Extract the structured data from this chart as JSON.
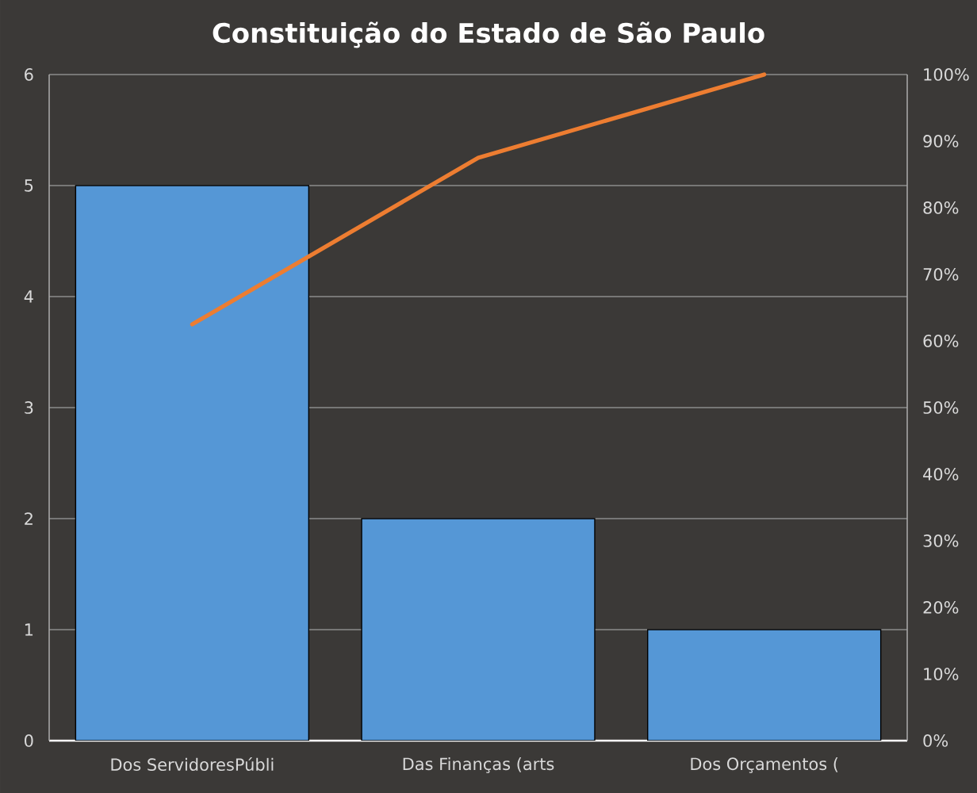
{
  "chart_data": {
    "type": "bar",
    "title": "Constituição do Estado de São Paulo",
    "categories": [
      "Dos ServidoresPúbli",
      "Das Finanças (arts",
      "Dos Orçamentos ("
    ],
    "series": [
      {
        "color": "#5597d6",
        "values": [
          5,
          2,
          1
        ]
      },
      {
        "type": "line",
        "axis": "y2",
        "color": "#ed7d31",
        "values": [
          62.5,
          87.5,
          100
        ]
      }
    ],
    "ylim": [
      0,
      6
    ],
    "yticks": [
      0,
      1,
      2,
      3,
      4,
      5,
      6
    ],
    "y2lim": [
      0,
      100
    ],
    "y2ticks": [
      {
        "value": 0,
        "label": "0%"
      },
      {
        "value": 10,
        "label": "10%"
      },
      {
        "value": 20,
        "label": "20%"
      },
      {
        "value": 30,
        "label": "30%"
      },
      {
        "value": 40,
        "label": "40%"
      },
      {
        "value": 50,
        "label": "50%"
      },
      {
        "value": 60,
        "label": "60%"
      },
      {
        "value": 70,
        "label": "70%"
      },
      {
        "value": 80,
        "label": "80%"
      },
      {
        "value": 90,
        "label": "90%"
      },
      {
        "value": 100,
        "label": "100%"
      }
    ],
    "grid": "y",
    "marker": "none"
  }
}
